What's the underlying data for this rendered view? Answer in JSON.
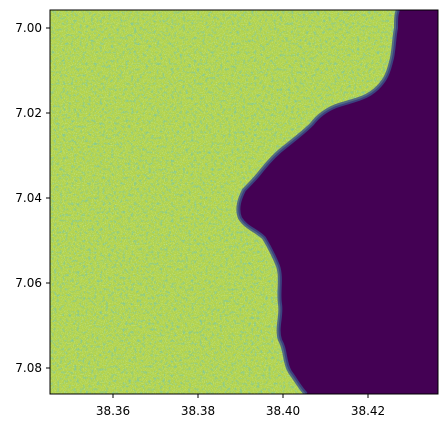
{
  "chart_data": {
    "type": "heatmap",
    "description_free": true,
    "colormap": "viridis",
    "colorbar": false,
    "grid": false,
    "x_ticks": [
      "38.36",
      "38.38",
      "38.40",
      "38.42"
    ],
    "y_ticks": [
      "7.00",
      "7.02",
      "7.04",
      "7.06",
      "7.08"
    ],
    "xlim": [
      38.345,
      38.4355
    ],
    "ylim": [
      7.0865,
      6.996
    ],
    "land_color": "#c8dc4a",
    "water_color": "#440154"
  },
  "xlabels": [
    "38.36",
    "38.38",
    "38.40",
    "38.42"
  ],
  "ylabels": [
    "7.00",
    "7.02",
    "7.04",
    "7.06",
    "7.08"
  ]
}
